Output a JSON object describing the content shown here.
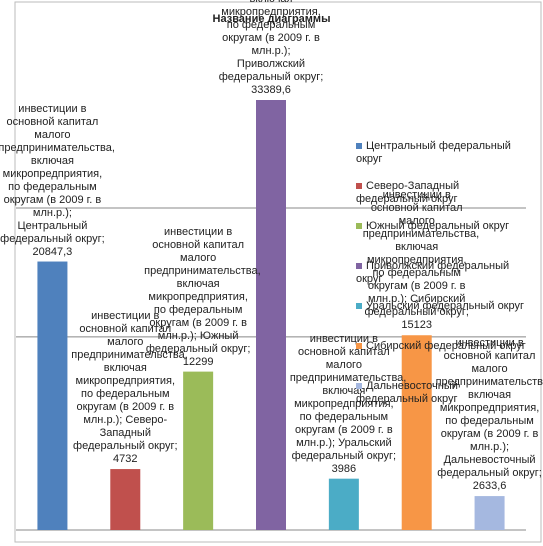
{
  "chart_data": {
    "type": "bar",
    "title": "Название диаграммы",
    "series_name": "инвестиции в основной капитал малого предпринимательства, включая микропредприятия, по федеральным округам (в 2009 г. в млн.р.)",
    "label_separator": ";",
    "categories": [
      "Центральный федеральный округ",
      "Северо-Западный федеральный округ",
      "Южный федеральный округ",
      "Приволжский федеральный округ",
      "Уральский федеральный округ",
      "Сибирский федеральный округ",
      "Дальневосточный федеральный округ"
    ],
    "values": [
      20847.3,
      4732,
      12299,
      33389.6,
      3986,
      15123,
      2633.6
    ],
    "value_labels": [
      "20847,3",
      "4732",
      "12299",
      "33389,6",
      "3986",
      "15123",
      "2633,6"
    ],
    "colors": [
      "#4f81bd",
      "#c0504d",
      "#9bbb59",
      "#8064a2",
      "#4bacc6",
      "#f79646",
      "#a5b8e0"
    ],
    "ylim": [
      0,
      41000
    ],
    "yticks": [
      15000,
      25000
    ],
    "grid": true,
    "tick_labels": false,
    "legend": "right"
  }
}
